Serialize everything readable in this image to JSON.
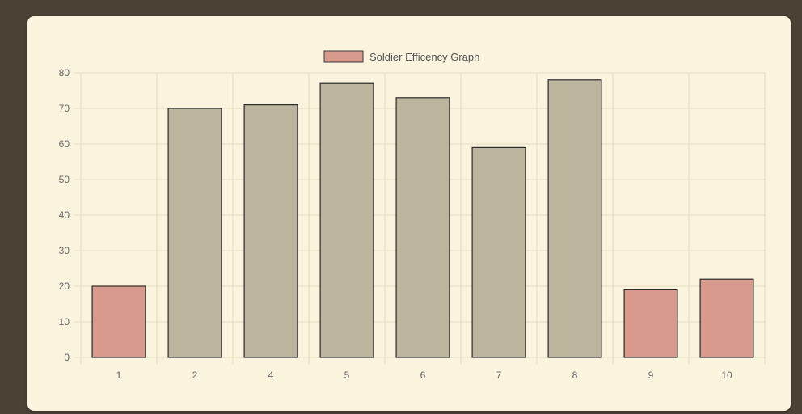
{
  "chart_data": {
    "type": "bar",
    "categories": [
      "1",
      "2",
      "4",
      "5",
      "6",
      "7",
      "8",
      "9",
      "10"
    ],
    "series": [
      {
        "name": "Soldier Efficency Graph",
        "values": [
          20,
          70,
          71,
          77,
          73,
          59,
          78,
          19,
          22
        ]
      }
    ],
    "bar_colors": [
      "#d89a8c",
      "#bcb59e",
      "#bcb59e",
      "#bcb59e",
      "#bcb59e",
      "#bcb59e",
      "#bcb59e",
      "#d89a8c",
      "#d89a8c"
    ],
    "bar_border_color": "#2a2a2a",
    "ylim": [
      0,
      80
    ],
    "y_ticks": [
      0,
      10,
      20,
      30,
      40,
      50,
      60,
      70,
      80
    ],
    "grid": true,
    "legend": "top-center",
    "title": "",
    "xlabel": "",
    "ylabel": ""
  },
  "legend": {
    "label": "Soldier Efficency Graph",
    "swatch_color": "#d89a8c"
  },
  "colors": {
    "page_background": "#4a4234",
    "card_background": "#faf3dd",
    "grid": "#e3dcc4"
  }
}
